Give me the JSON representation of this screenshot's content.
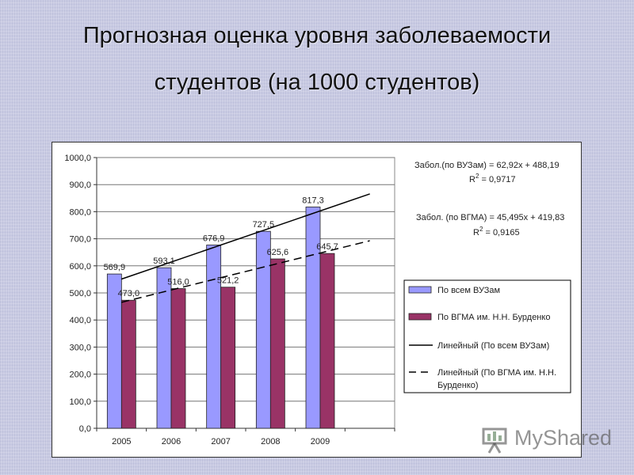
{
  "slide": {
    "title_line1": "Прогнозная оценка уровня заболеваемости",
    "title_line2": "студентов (на 1000 студентов)"
  },
  "chart_data": {
    "type": "bar",
    "title": "",
    "xlabel": "",
    "ylabel": "",
    "categories": [
      "2005",
      "2006",
      "2007",
      "2008",
      "2009"
    ],
    "ylim": [
      0,
      1000
    ],
    "ytick_step": 100,
    "ytick_labels": [
      "0,0",
      "100,0",
      "200,0",
      "300,0",
      "400,0",
      "500,0",
      "600,0",
      "700,0",
      "800,0",
      "900,0",
      "1000,0"
    ],
    "grid": true,
    "legend_position": "right",
    "series": [
      {
        "name": "По всем ВУЗам",
        "values": [
          569.9,
          593.1,
          676.9,
          727.5,
          817.3
        ],
        "labels": [
          "569,9",
          "593,1",
          "676,9",
          "727,5",
          "817,3"
        ],
        "color": "#9999ff"
      },
      {
        "name": "По ВГМА им. Н.Н. Бурденко",
        "values": [
          473.0,
          516.0,
          521.2,
          625.6,
          645.7
        ],
        "labels": [
          "473,0",
          "516,0",
          "521,2",
          "625,6",
          "645,7"
        ],
        "color": "#993366"
      }
    ],
    "trendlines": [
      {
        "name": "Линейный (По всем ВУЗам)",
        "slope": 62.92,
        "intercept": 488.19,
        "style": "solid",
        "equation": "Забол.(по ВУЗам) = 62,92x + 488,19",
        "r2_prefix": "R",
        "r2_sup": "2",
        "r2_value": " = 0,9717"
      },
      {
        "name": "Линейный (По ВГМА им. Н.Н. Бурденко)",
        "slope": 45.495,
        "intercept": 419.83,
        "style": "dashed",
        "equation": "Забол. (по ВГМА) = 45,495x + 419,83",
        "r2_prefix": "R",
        "r2_sup": "2",
        "r2_value": " = 0,9165"
      }
    ],
    "trend_x_range": [
      1,
      6
    ]
  },
  "legend": {
    "items": [
      {
        "label_lines": [
          "По всем ВУЗам"
        ],
        "kind": "bar",
        "color": "#9999ff"
      },
      {
        "label_lines": [
          "По ВГМА им. Н.Н. Бурденко"
        ],
        "kind": "bar",
        "color": "#993366"
      },
      {
        "label_lines": [
          "Линейный (По всем ВУЗам)"
        ],
        "kind": "solid"
      },
      {
        "label_lines": [
          "Линейный (По ВГМА им. Н.Н.",
          "Бурденко)"
        ],
        "kind": "dashed"
      }
    ]
  },
  "watermark": {
    "text": "MyShared",
    "icon": "presentation-board-icon"
  }
}
